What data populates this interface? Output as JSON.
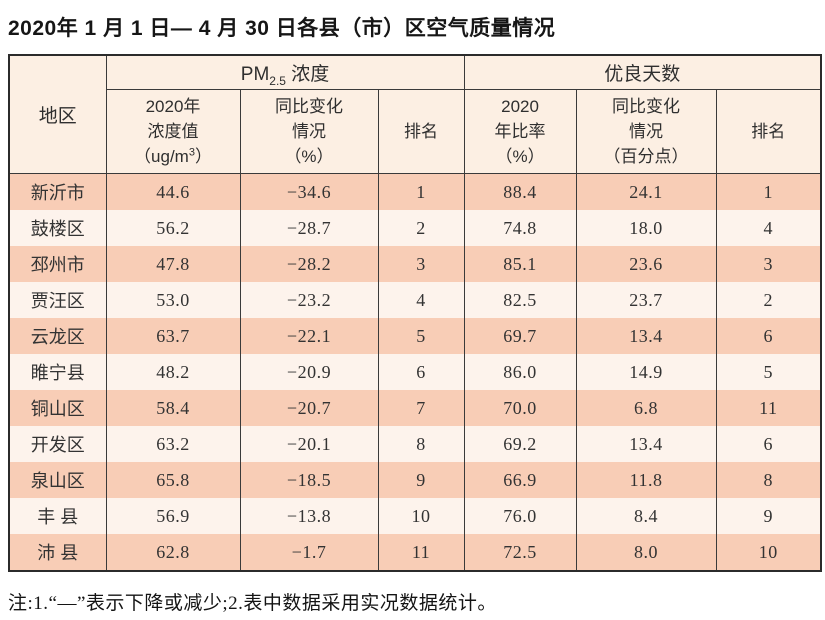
{
  "title": "2020年 1 月 1 日— 4 月 30 日各县（市）区空气质量情况",
  "table": {
    "corner_header": "地区",
    "group_headers": {
      "pm": {
        "prefix": "PM",
        "sub": "2.5",
        "suffix": " 浓度"
      },
      "good_days": "优良天数"
    },
    "sub_headers": {
      "pm_value": {
        "line1": "2020年",
        "line2": "浓度值",
        "unit_prefix": "（ug/m",
        "unit_sup": "3",
        "unit_suffix": "）"
      },
      "pm_change": {
        "line1": "同比变化",
        "line2": "情况",
        "line3": "（%）"
      },
      "pm_rank": "排名",
      "good_ratio": {
        "line1": "2020",
        "line2": "年比率",
        "line3": "（%）"
      },
      "good_change": {
        "line1": "同比变化",
        "line2": "情况",
        "line3": "（百分点）"
      },
      "good_rank": "排名"
    },
    "rows": [
      {
        "region": "新沂市",
        "pm_value": "44.6",
        "pm_change": "−34.6",
        "pm_rank": "1",
        "good_ratio": "88.4",
        "good_change": "24.1",
        "good_rank": "1"
      },
      {
        "region": "鼓楼区",
        "pm_value": "56.2",
        "pm_change": "−28.7",
        "pm_rank": "2",
        "good_ratio": "74.8",
        "good_change": "18.0",
        "good_rank": "4"
      },
      {
        "region": "邳州市",
        "pm_value": "47.8",
        "pm_change": "−28.2",
        "pm_rank": "3",
        "good_ratio": "85.1",
        "good_change": "23.6",
        "good_rank": "3"
      },
      {
        "region": "贾汪区",
        "pm_value": "53.0",
        "pm_change": "−23.2",
        "pm_rank": "4",
        "good_ratio": "82.5",
        "good_change": "23.7",
        "good_rank": "2"
      },
      {
        "region": "云龙区",
        "pm_value": "63.7",
        "pm_change": "−22.1",
        "pm_rank": "5",
        "good_ratio": "69.7",
        "good_change": "13.4",
        "good_rank": "6"
      },
      {
        "region": "睢宁县",
        "pm_value": "48.2",
        "pm_change": "−20.9",
        "pm_rank": "6",
        "good_ratio": "86.0",
        "good_change": "14.9",
        "good_rank": "5"
      },
      {
        "region": "铜山区",
        "pm_value": "58.4",
        "pm_change": "−20.7",
        "pm_rank": "7",
        "good_ratio": "70.0",
        "good_change": "6.8",
        "good_rank": "11"
      },
      {
        "region": "开发区",
        "pm_value": "63.2",
        "pm_change": "−20.1",
        "pm_rank": "8",
        "good_ratio": "69.2",
        "good_change": "13.4",
        "good_rank": "6"
      },
      {
        "region": "泉山区",
        "pm_value": "65.8",
        "pm_change": "−18.5",
        "pm_rank": "9",
        "good_ratio": "66.9",
        "good_change": "11.8",
        "good_rank": "8"
      },
      {
        "region": "丰 县",
        "pm_value": "56.9",
        "pm_change": "−13.8",
        "pm_rank": "10",
        "good_ratio": "76.0",
        "good_change": "8.4",
        "good_rank": "9"
      },
      {
        "region": "沛 县",
        "pm_value": "62.8",
        "pm_change": "−1.7",
        "pm_rank": "11",
        "good_ratio": "72.5",
        "good_change": "8.0",
        "good_rank": "10"
      }
    ]
  },
  "note": "注:1.“—”表示下降或减少;2.表中数据采用实况数据统计。",
  "colors": {
    "row_odd_bg": "#f8cdb6",
    "row_even_bg": "#fdf3ec",
    "header_bg": "#fcefe3",
    "grid_line": "#3a3a3a",
    "outer_border": "#2b2b2b",
    "text": "#303030"
  },
  "chart_data": {
    "type": "table",
    "title": "2020年1月1日—4月30日各县（市）区空气质量情况",
    "column_groups": [
      "PM2.5浓度",
      "优良天数"
    ],
    "columns": [
      "地区",
      "PM2.5浓度 2020年浓度值（ug/m3）",
      "PM2.5浓度 同比变化情况（%）",
      "PM2.5浓度 排名",
      "优良天数 2020年比率（%）",
      "优良天数 同比变化情况（百分点）",
      "优良天数 排名"
    ],
    "rows": [
      [
        "新沂市",
        44.6,
        -34.6,
        1,
        88.4,
        24.1,
        1
      ],
      [
        "鼓楼区",
        56.2,
        -28.7,
        2,
        74.8,
        18.0,
        4
      ],
      [
        "邳州市",
        47.8,
        -28.2,
        3,
        85.1,
        23.6,
        3
      ],
      [
        "贾汪区",
        53.0,
        -23.2,
        4,
        82.5,
        23.7,
        2
      ],
      [
        "云龙区",
        63.7,
        -22.1,
        5,
        69.7,
        13.4,
        6
      ],
      [
        "睢宁县",
        48.2,
        -20.9,
        6,
        86.0,
        14.9,
        5
      ],
      [
        "铜山区",
        58.4,
        -20.7,
        7,
        70.0,
        6.8,
        11
      ],
      [
        "开发区",
        63.2,
        -20.1,
        8,
        69.2,
        13.4,
        6
      ],
      [
        "泉山区",
        65.8,
        -18.5,
        9,
        66.9,
        11.8,
        8
      ],
      [
        "丰县",
        56.9,
        -13.8,
        10,
        76.0,
        8.4,
        9
      ],
      [
        "沛县",
        62.8,
        -1.7,
        11,
        72.5,
        8.0,
        10
      ]
    ],
    "note": "注:1.“—”表示下降或减少;2.表中数据采用实况数据统计。"
  }
}
